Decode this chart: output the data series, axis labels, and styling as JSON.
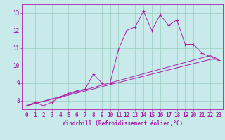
{
  "title": "",
  "xlabel": "Windchill (Refroidissement éolien,°C)",
  "ylabel": "",
  "bg_color": "#c8eaea",
  "grid_color": "#99ccbb",
  "line_color": "#aa22aa",
  "x_data": [
    0,
    1,
    2,
    3,
    4,
    5,
    6,
    7,
    8,
    9,
    10,
    11,
    12,
    13,
    14,
    15,
    16,
    17,
    18,
    19,
    20,
    21,
    22,
    23
  ],
  "y_jagged": [
    7.7,
    7.9,
    7.7,
    7.9,
    8.2,
    8.4,
    8.55,
    8.65,
    9.5,
    9.0,
    9.0,
    10.9,
    12.0,
    12.2,
    13.1,
    12.0,
    12.9,
    12.3,
    12.6,
    11.2,
    11.2,
    10.7,
    null,
    10.3
  ],
  "y_line1": [
    7.7,
    7.83,
    7.96,
    8.09,
    8.22,
    8.35,
    8.48,
    8.61,
    8.74,
    8.87,
    9.0,
    9.13,
    9.26,
    9.39,
    9.52,
    9.65,
    9.78,
    9.91,
    10.04,
    10.17,
    10.3,
    10.43,
    10.56,
    10.35
  ],
  "y_line2": [
    7.7,
    7.82,
    7.94,
    8.06,
    8.18,
    8.3,
    8.42,
    8.54,
    8.66,
    8.78,
    8.9,
    9.02,
    9.14,
    9.26,
    9.38,
    9.5,
    9.62,
    9.74,
    9.86,
    9.98,
    10.1,
    10.22,
    10.34,
    10.35
  ],
  "xlim": [
    -0.5,
    23.5
  ],
  "ylim": [
    7.5,
    13.5
  ],
  "yticks": [
    8,
    9,
    10,
    11,
    12,
    13
  ],
  "xticks": [
    0,
    1,
    2,
    3,
    4,
    5,
    6,
    7,
    8,
    9,
    10,
    11,
    12,
    13,
    14,
    15,
    16,
    17,
    18,
    19,
    20,
    21,
    22,
    23
  ],
  "tick_fontsize": 5.5,
  "xlabel_fontsize": 5.5
}
